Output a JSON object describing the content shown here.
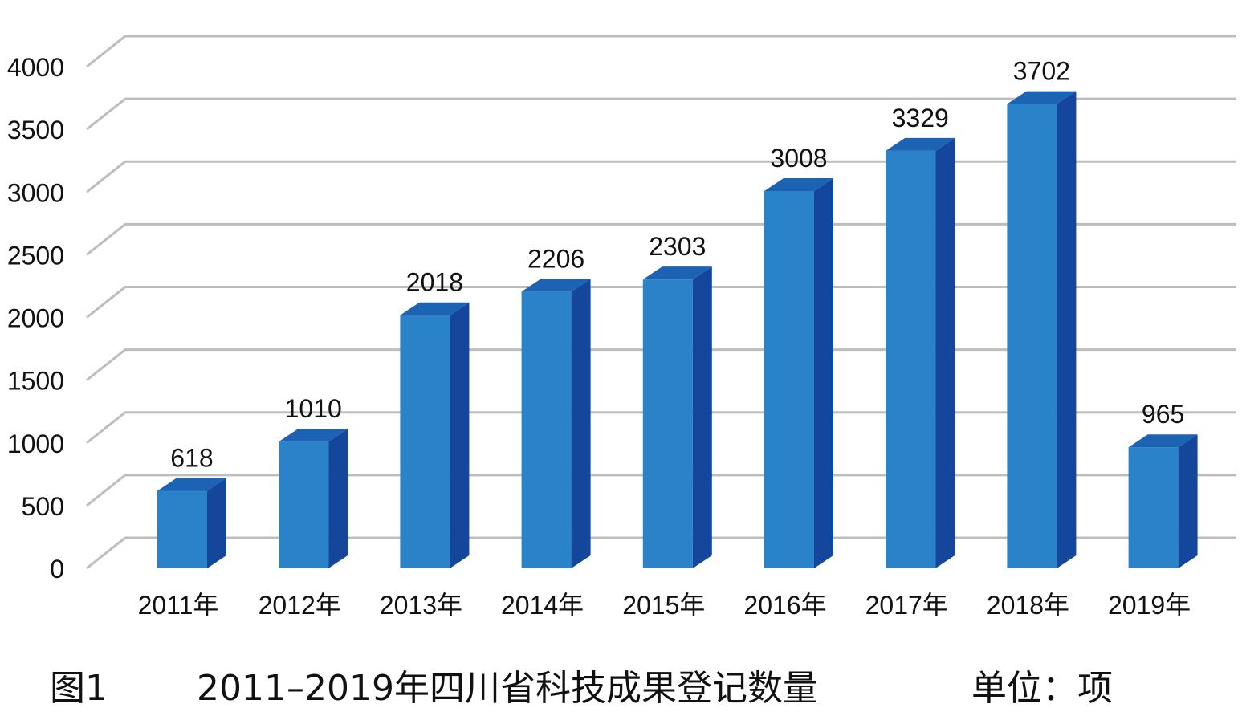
{
  "chart_data": {
    "type": "bar",
    "categories": [
      "2011年",
      "2012年",
      "2013年",
      "2014年",
      "2015年",
      "2016年",
      "2017年",
      "2018年",
      "2019年"
    ],
    "values": [
      618,
      1010,
      2018,
      2206,
      2303,
      3008,
      3329,
      3702,
      965
    ],
    "data_labels": [
      "618",
      "1010",
      "2018",
      "2206",
      "2303",
      "3008",
      "3329",
      "3702",
      "965"
    ],
    "yticks": [
      0,
      500,
      1000,
      1500,
      2000,
      2500,
      3000,
      3500,
      4000
    ],
    "ylim": [
      0,
      4000
    ],
    "grid": true,
    "colors": {
      "bar_front": "#2a82c8",
      "bar_side": "#14479c",
      "bar_top": "#1d63b4",
      "grid": "#bdbdbd"
    }
  },
  "caption": {
    "figure_no": "图1",
    "title": "2011–2019年四川省科技成果登记数量",
    "unit": "单位：项"
  }
}
